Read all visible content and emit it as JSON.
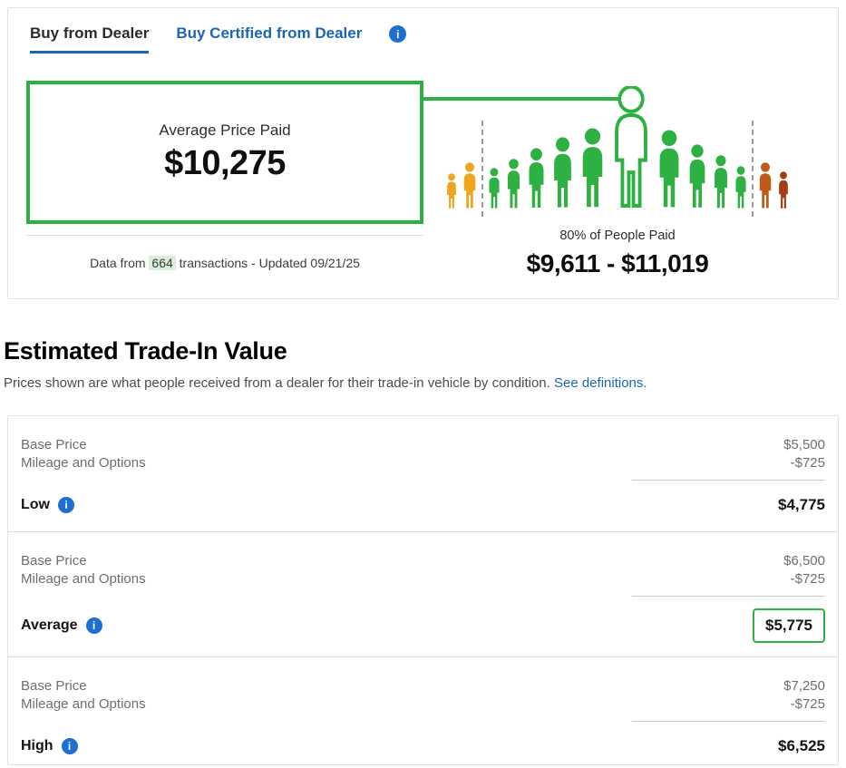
{
  "colors": {
    "green": "#2fb043",
    "blue": "#1b66b5",
    "icon_blue": "#1d6fd2",
    "highlight_bg": "#d9efd9"
  },
  "tabs": {
    "active": "Buy from Dealer",
    "secondary": "Buy Certified from Dealer"
  },
  "meter": {
    "average_label": "Average Price Paid",
    "average_value": "$10,275",
    "note_prefix": "Data from ",
    "note_count": "664",
    "note_suffix": " transactions - Updated 09/21/25",
    "range_label": "80% of People Paid",
    "range_value": "$9,611 - $11,019"
  },
  "crowd": {
    "figures": [
      {
        "type": "person",
        "color": "#f0a51e",
        "h": 40
      },
      {
        "type": "person",
        "color": "#f0a51e",
        "h": 52
      },
      {
        "type": "divider"
      },
      {
        "type": "person",
        "color": "#2fb043",
        "h": 46
      },
      {
        "type": "person",
        "color": "#2fb043",
        "h": 56
      },
      {
        "type": "person",
        "color": "#2fb043",
        "h": 68
      },
      {
        "type": "person",
        "color": "#2fb043",
        "h": 80
      },
      {
        "type": "person",
        "color": "#2fb043",
        "h": 90
      },
      {
        "type": "person",
        "outlined": true,
        "h": 136
      },
      {
        "type": "person",
        "color": "#2fb043",
        "h": 88
      },
      {
        "type": "person",
        "color": "#2fb043",
        "h": 72
      },
      {
        "type": "person",
        "color": "#2fb043",
        "h": 60
      },
      {
        "type": "person",
        "color": "#2fb043",
        "h": 48
      },
      {
        "type": "divider"
      },
      {
        "type": "person",
        "color": "#c05a1b",
        "h": 52
      },
      {
        "type": "person",
        "color": "#a63c14",
        "h": 42
      }
    ]
  },
  "trade_in": {
    "title": "Estimated Trade-In Value",
    "subtitle": "Prices shown are what people received from a dealer for their trade-in vehicle by condition. ",
    "link_label": "See definitions.",
    "rows": [
      {
        "base_label": "Base Price",
        "base_value": "$5,500",
        "adj_label": "Mileage and Options",
        "adj_value": "-$725",
        "total_label": "Low",
        "total_value": "$4,775",
        "highlighted": false
      },
      {
        "base_label": "Base Price",
        "base_value": "$6,500",
        "adj_label": "Mileage and Options",
        "adj_value": "-$725",
        "total_label": "Average",
        "total_value": "$5,775",
        "highlighted": true
      },
      {
        "base_label": "Base Price",
        "base_value": "$7,250",
        "adj_label": "Mileage and Options",
        "adj_value": "-$725",
        "total_label": "High",
        "total_value": "$6,525",
        "highlighted": false
      }
    ]
  }
}
